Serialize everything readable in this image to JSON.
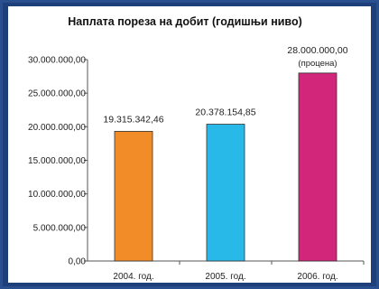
{
  "chart_data": {
    "type": "bar",
    "title": "Наплата пореза на добит (годишњи ниво)",
    "categories": [
      "2004. год.",
      "2005. год.",
      "2006. год."
    ],
    "values": [
      19315342.46,
      20378154.85,
      28000000.0
    ],
    "value_labels": [
      "19.315.342,46",
      "20.378.154,85",
      "28.000.000,00"
    ],
    "annotations": [
      "",
      "",
      "(процена)"
    ],
    "bar_colors": [
      "#f28c28",
      "#29b9e8",
      "#d1267a"
    ],
    "ylim": [
      0,
      30000000
    ],
    "y_ticks": [
      0,
      5000000,
      10000000,
      15000000,
      20000000,
      25000000,
      30000000
    ],
    "y_tick_labels": [
      "0,00",
      "5.000.000,00",
      "10.000.000,00",
      "15.000.000,00",
      "20.000.000,00",
      "25.000.000,00",
      "30.000.000,00"
    ],
    "xlabel": "",
    "ylabel": "",
    "grid": false,
    "legend": "none"
  }
}
